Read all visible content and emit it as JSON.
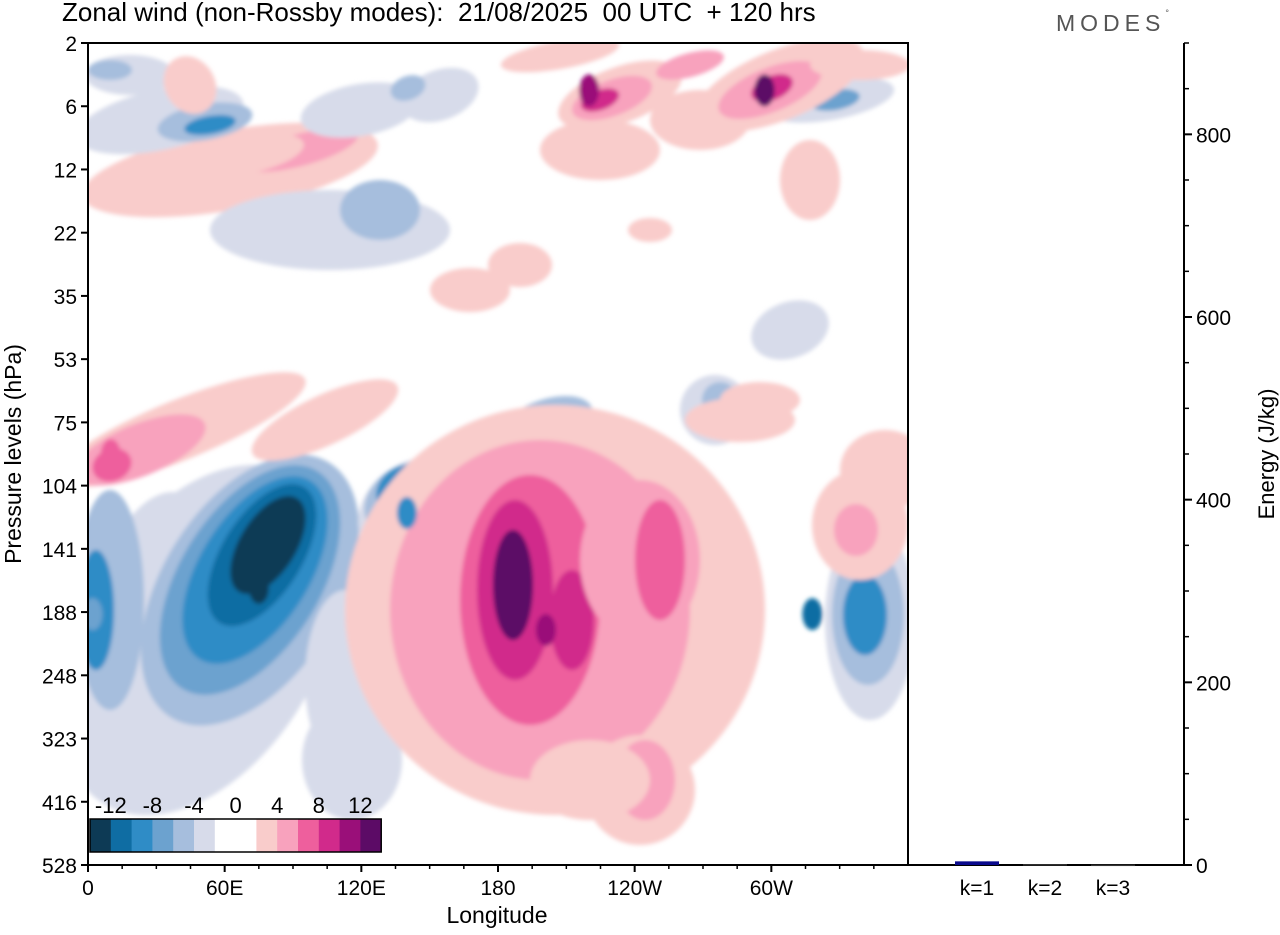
{
  "title": "Zonal wind (non-Rossby modes):  21/08/2025  00 UTC  + 120 hrs",
  "logo": "MODES",
  "logo_mark": "°",
  "chart_data": [
    {
      "type": "heatmap",
      "title": "Zonal wind (non-Rossby modes)",
      "xlabel": "Longitude",
      "ylabel": "Pressure levels (hPa)",
      "xticks": [
        "0",
        "60E",
        "120E",
        "180",
        "120W",
        "60W"
      ],
      "yticks": [
        "2",
        "6",
        "12",
        "22",
        "35",
        "53",
        "75",
        "104",
        "141",
        "188",
        "248",
        "323",
        "416",
        "528"
      ],
      "colorbar": {
        "labels": [
          "-12",
          "-8",
          "-4",
          "0",
          "4",
          "8",
          "12"
        ],
        "colors": [
          "#0d3a55",
          "#0f6da3",
          "#2f8cc6",
          "#6ca2cf",
          "#a6bedd",
          "#d7dbea",
          "#ffffff",
          "#ffffff",
          "#f9cccb",
          "#f8a2bd",
          "#ee5f9d",
          "#d12a8b",
          "#9a0f79",
          "#5c0b66"
        ]
      },
      "features": [
        {
          "name": "strong-easterly-core",
          "lon": 75,
          "level_hPa": 170,
          "value": -14
        },
        {
          "name": "easterly-band-west-pacific",
          "lon": 140,
          "level_hPa": 120,
          "value": -8
        },
        {
          "name": "easterly-edge-west",
          "lon": 2,
          "level_hPa": 190,
          "value": -6
        },
        {
          "name": "easterly-core-east-pacific",
          "lon": 318,
          "level_hPa": 190,
          "value": -10
        },
        {
          "name": "westerly-core-date-line",
          "lon": 183,
          "level_hPa": 180,
          "value": 14
        },
        {
          "name": "westerly-secondary",
          "lon": 201,
          "level_hPa": 205,
          "value": 10
        },
        {
          "name": "westerly-upper-stratosphere",
          "lon": 220,
          "level_hPa": 5,
          "value": 10
        },
        {
          "name": "westerly-upper-stratosphere-2",
          "lon": 297,
          "level_hPa": 5,
          "value": 12
        },
        {
          "name": "westerly-lower-stratosphere",
          "lon": 10,
          "level_hPa": 90,
          "value": 6
        }
      ]
    },
    {
      "type": "bar",
      "categories": [
        "k=1",
        "k=2",
        "k=3"
      ],
      "values": [
        4,
        1,
        0.5
      ],
      "ylabel": "Energy (J/kg)",
      "ylim": [
        0,
        900
      ],
      "yticks": [
        "0",
        "200",
        "400",
        "600",
        "800"
      ],
      "colors": [
        "#0a0a8c",
        "#333333",
        "#333333"
      ]
    }
  ]
}
